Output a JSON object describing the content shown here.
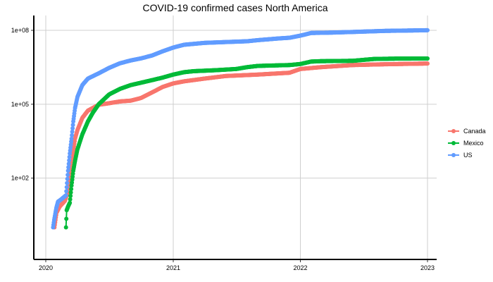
{
  "chart_data": {
    "type": "line",
    "title": "COVID-19 confirmed cases North America",
    "xlabel": "",
    "ylabel": "",
    "y_scale": "log10",
    "xlim": [
      "2020-01-01",
      "2023-01-01"
    ],
    "ylim": [
      0.05,
      400000000
    ],
    "x_ticks": [
      "2020",
      "2021",
      "2022",
      "2023"
    ],
    "y_ticks": [
      {
        "value": 100,
        "label": "1e+02"
      },
      {
        "value": 100000,
        "label": "1e+05"
      },
      {
        "value": 100000000,
        "label": "1e+08"
      }
    ],
    "grid": true,
    "legend_position": "right",
    "series": [
      {
        "name": "Canada",
        "color": "#F8766D",
        "points": [
          [
            "2020-01-26",
            1
          ],
          [
            "2020-02-01",
            4
          ],
          [
            "2020-02-10",
            7
          ],
          [
            "2020-02-25",
            12
          ],
          [
            "2020-03-05",
            30
          ],
          [
            "2020-03-10",
            100
          ],
          [
            "2020-03-15",
            300
          ],
          [
            "2020-03-20",
            1200
          ],
          [
            "2020-03-25",
            4000
          ],
          [
            "2020-04-01",
            9000
          ],
          [
            "2020-04-15",
            28000
          ],
          [
            "2020-05-01",
            55000
          ],
          [
            "2020-06-01",
            95000
          ],
          [
            "2020-07-01",
            110000
          ],
          [
            "2020-08-01",
            130000
          ],
          [
            "2020-09-01",
            140000
          ],
          [
            "2020-10-01",
            180000
          ],
          [
            "2020-11-01",
            300000
          ],
          [
            "2020-12-01",
            500000
          ],
          [
            "2021-01-01",
            700000
          ],
          [
            "2021-02-01",
            850000
          ],
          [
            "2021-04-01",
            1100000
          ],
          [
            "2021-06-01",
            1400000
          ],
          [
            "2021-09-01",
            1600000
          ],
          [
            "2021-12-01",
            1900000
          ],
          [
            "2022-01-01",
            2700000
          ],
          [
            "2022-03-01",
            3200000
          ],
          [
            "2022-06-01",
            3900000
          ],
          [
            "2022-09-01",
            4200000
          ],
          [
            "2023-01-01",
            4500000
          ]
        ]
      },
      {
        "name": "Mexico",
        "color": "#00BA38",
        "points": [
          [
            "2020-02-28",
            1
          ],
          [
            "2020-03-01",
            5
          ],
          [
            "2020-03-05",
            7
          ],
          [
            "2020-03-10",
            10
          ],
          [
            "2020-03-15",
            50
          ],
          [
            "2020-03-20",
            200
          ],
          [
            "2020-03-25",
            500
          ],
          [
            "2020-04-01",
            1500
          ],
          [
            "2020-04-15",
            6000
          ],
          [
            "2020-05-01",
            20000
          ],
          [
            "2020-05-15",
            45000
          ],
          [
            "2020-06-01",
            100000
          ],
          [
            "2020-07-01",
            250000
          ],
          [
            "2020-08-01",
            420000
          ],
          [
            "2020-09-01",
            600000
          ],
          [
            "2020-10-01",
            750000
          ],
          [
            "2020-11-01",
            950000
          ],
          [
            "2020-12-01",
            1200000
          ],
          [
            "2021-01-01",
            1600000
          ],
          [
            "2021-02-01",
            2000000
          ],
          [
            "2021-03-01",
            2200000
          ],
          [
            "2021-05-01",
            2400000
          ],
          [
            "2021-07-01",
            2700000
          ],
          [
            "2021-08-01",
            3200000
          ],
          [
            "2021-09-01",
            3600000
          ],
          [
            "2021-12-01",
            3900000
          ],
          [
            "2022-01-01",
            4300000
          ],
          [
            "2022-02-01",
            5400000
          ],
          [
            "2022-03-01",
            5600000
          ],
          [
            "2022-06-01",
            5800000
          ],
          [
            "2022-08-01",
            6900000
          ],
          [
            "2022-10-01",
            7100000
          ],
          [
            "2023-01-01",
            7200000
          ]
        ]
      },
      {
        "name": "US",
        "color": "#619CFF",
        "points": [
          [
            "2020-01-22",
            1
          ],
          [
            "2020-01-25",
            2
          ],
          [
            "2020-01-31",
            6
          ],
          [
            "2020-02-05",
            11
          ],
          [
            "2020-02-15",
            14
          ],
          [
            "2020-02-28",
            20
          ],
          [
            "2020-03-05",
            200
          ],
          [
            "2020-03-10",
            1000
          ],
          [
            "2020-03-15",
            4000
          ],
          [
            "2020-03-20",
            20000
          ],
          [
            "2020-03-25",
            70000
          ],
          [
            "2020-04-01",
            200000
          ],
          [
            "2020-04-15",
            600000
          ],
          [
            "2020-05-01",
            1100000
          ],
          [
            "2020-06-01",
            1800000
          ],
          [
            "2020-07-01",
            3000000
          ],
          [
            "2020-08-01",
            4600000
          ],
          [
            "2020-09-01",
            6000000
          ],
          [
            "2020-10-01",
            7300000
          ],
          [
            "2020-11-01",
            9500000
          ],
          [
            "2020-12-01",
            14000000
          ],
          [
            "2021-01-01",
            20000000
          ],
          [
            "2021-02-01",
            26000000
          ],
          [
            "2021-04-01",
            31000000
          ],
          [
            "2021-06-01",
            33500000
          ],
          [
            "2021-08-01",
            36000000
          ],
          [
            "2021-09-01",
            40000000
          ],
          [
            "2021-11-01",
            47000000
          ],
          [
            "2021-12-01",
            50000000
          ],
          [
            "2022-01-01",
            61000000
          ],
          [
            "2022-02-01",
            78000000
          ],
          [
            "2022-04-01",
            81000000
          ],
          [
            "2022-06-01",
            86000000
          ],
          [
            "2022-09-01",
            95000000
          ],
          [
            "2022-11-01",
            98000000
          ],
          [
            "2023-01-01",
            101000000
          ]
        ]
      }
    ]
  }
}
